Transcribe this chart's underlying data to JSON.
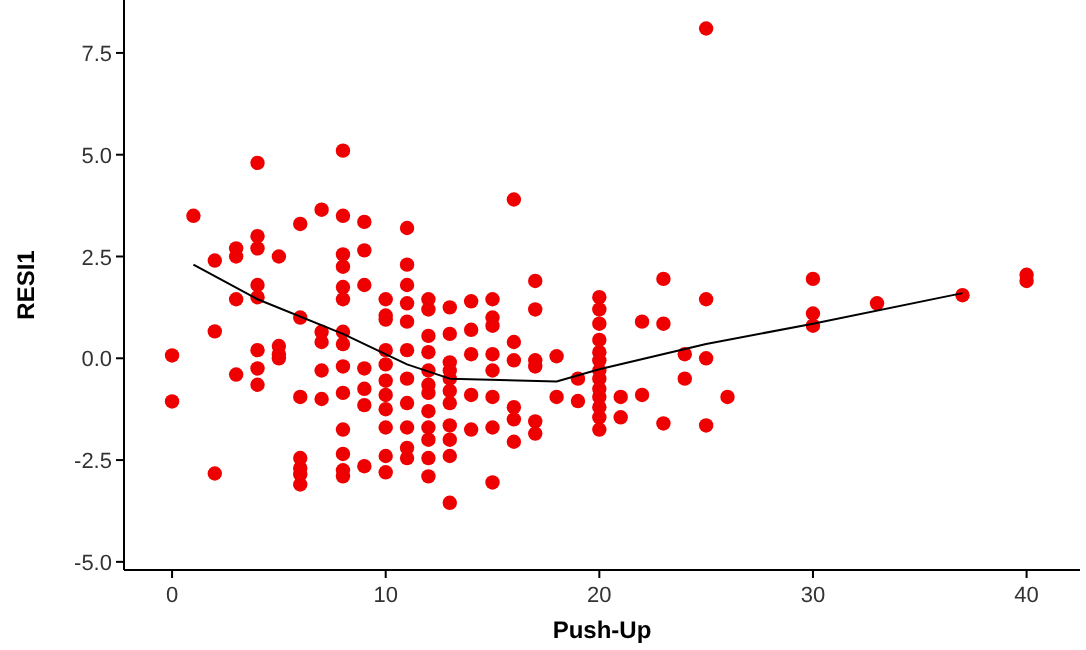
{
  "chart_data": {
    "type": "scatter",
    "xlabel": "Push-Up",
    "ylabel": "RESI1",
    "xlim": [
      -2.25,
      42.5
    ],
    "ylim": [
      -5.2,
      8.8
    ],
    "xticks": [
      0,
      10,
      20,
      30,
      40
    ],
    "yticks": [
      {
        "value": -5,
        "label": "-5.0"
      },
      {
        "value": -2.5,
        "label": "-2.5"
      },
      {
        "value": 0,
        "label": "0.0"
      },
      {
        "value": 2.5,
        "label": "2.5"
      },
      {
        "value": 5,
        "label": "5.0"
      },
      {
        "value": 7.5,
        "label": "7.5"
      }
    ],
    "grid": false,
    "marker": "circle",
    "series": [
      {
        "color": "#ee0000",
        "x": [
          0,
          0,
          1,
          2,
          2,
          2,
          3,
          3,
          3,
          3,
          4,
          4,
          4,
          4,
          4,
          4,
          4,
          4,
          5,
          5,
          5,
          5,
          6,
          6,
          6,
          6,
          6,
          6,
          6,
          7,
          7,
          7,
          7,
          7,
          8,
          8,
          8,
          8,
          8,
          8,
          8,
          8,
          8,
          8,
          8,
          8,
          8,
          8,
          9,
          9,
          9,
          9,
          9,
          9,
          9,
          10,
          10,
          10,
          10,
          10,
          10,
          10,
          10,
          10,
          10,
          10,
          11,
          11,
          11,
          11,
          11,
          11,
          11,
          11,
          11,
          11,
          11,
          12,
          12,
          12,
          12,
          12,
          12,
          12,
          12,
          12,
          12,
          12,
          12,
          13,
          13,
          13,
          13,
          13,
          13,
          13,
          13,
          13,
          13,
          13,
          14,
          14,
          14,
          14,
          14,
          15,
          15,
          15,
          15,
          15,
          15,
          15,
          15,
          16,
          16,
          16,
          16,
          16,
          16,
          17,
          17,
          17,
          17,
          17,
          17,
          18,
          18,
          19,
          19,
          20,
          20,
          20,
          20,
          20,
          20,
          20,
          20,
          20,
          20,
          20,
          20,
          20,
          21,
          21,
          22,
          22,
          23,
          23,
          23,
          24,
          24,
          25,
          25,
          25,
          25,
          26,
          30,
          30,
          30,
          33,
          37,
          40,
          40
        ],
        "values": [
          0.07,
          -1.06,
          3.5,
          2.4,
          0.66,
          -2.83,
          2.7,
          2.5,
          1.45,
          -0.4,
          4.8,
          3.0,
          2.7,
          1.8,
          1.5,
          0.2,
          -0.25,
          -0.65,
          2.5,
          0.3,
          0.1,
          0,
          3.3,
          1.0,
          -0.95,
          -2.45,
          -2.7,
          -2.85,
          -3.1,
          3.65,
          0.65,
          0.4,
          -0.3,
          -1.0,
          5.1,
          3.5,
          2.55,
          2.25,
          1.75,
          1.45,
          0.65,
          0.35,
          -0.2,
          -0.85,
          -1.75,
          -2.35,
          -2.75,
          -2.9,
          3.35,
          2.65,
          1.8,
          -0.25,
          -0.75,
          -1.15,
          -2.65,
          1.45,
          1.05,
          0.95,
          0.2,
          -0.15,
          -0.55,
          -0.9,
          -1.25,
          -1.7,
          -2.4,
          -2.8,
          3.2,
          2.3,
          1.8,
          1.35,
          0.9,
          0.2,
          -0.5,
          -1.1,
          -1.7,
          -2.2,
          -2.45,
          1.45,
          1.2,
          0.55,
          0.15,
          -0.3,
          -0.65,
          -0.85,
          -1.3,
          -1.7,
          -2.0,
          -2.45,
          -2.9,
          1.25,
          0.6,
          -0.1,
          -0.3,
          -0.5,
          -0.8,
          -1.1,
          -1.65,
          -2.0,
          -2.4,
          -3.55,
          1.4,
          0.7,
          0.1,
          -0.9,
          -1.75,
          1.45,
          1.0,
          0.8,
          0.1,
          -0.3,
          -0.95,
          -1.7,
          -3.05,
          3.9,
          0.4,
          -0.05,
          -1.2,
          -1.5,
          -2.05,
          1.9,
          1.2,
          -0.05,
          -0.2,
          -1.55,
          -1.85,
          0.05,
          -0.95,
          -0.5,
          -1.05,
          1.5,
          1.2,
          0.85,
          0.45,
          0.15,
          -0.05,
          -0.3,
          -0.5,
          -0.75,
          -0.95,
          -1.2,
          -1.45,
          -1.75,
          -0.95,
          -1.45,
          0.9,
          -0.9,
          1.95,
          0.85,
          -1.6,
          0.1,
          -0.5,
          8.1,
          1.45,
          0,
          -1.65,
          -0.95,
          1.95,
          1.1,
          0.8,
          1.35,
          1.55,
          2.05,
          1.9
        ]
      },
      {
        "type": "line",
        "color": "#000000",
        "line_style": "solid",
        "marker": "none",
        "x": [
          1,
          4,
          8,
          11,
          13,
          18,
          20,
          25,
          30,
          37
        ],
        "values": [
          2.3,
          1.45,
          0.6,
          -0.15,
          -0.5,
          -0.57,
          -0.27,
          0.35,
          0.85,
          1.6
        ]
      }
    ]
  }
}
